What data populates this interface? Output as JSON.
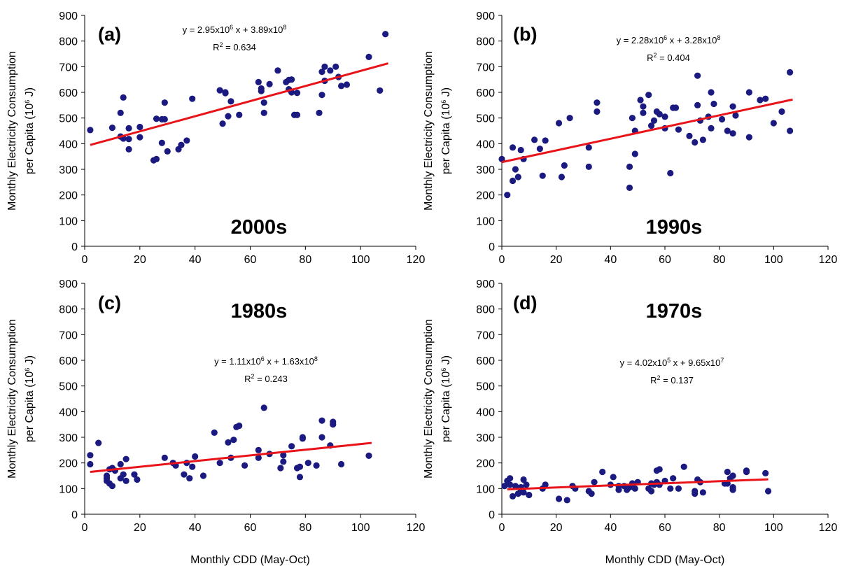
{
  "chart_data": [
    {
      "type": "scatter",
      "panel_label": "(a)",
      "decade": "2000s",
      "equation": [
        "y = 2.95x10",
        "6",
        " x + 3.89x10",
        "8"
      ],
      "r2": [
        "R",
        "2",
        " = 0.634"
      ],
      "ylabel": [
        [
          "Monthly Electricity Consumption"
        ],
        [
          "per Capita (10",
          "6",
          " J)"
        ]
      ],
      "xlim": [
        0,
        120
      ],
      "ylim": [
        0,
        900
      ],
      "xticks": [
        0,
        20,
        40,
        60,
        80,
        100,
        120
      ],
      "yticks": [
        0,
        100,
        200,
        300,
        400,
        500,
        600,
        700,
        800,
        900
      ],
      "color": "#1a1a80",
      "x": [
        2,
        10,
        13,
        13,
        14,
        14,
        16,
        16,
        16,
        20,
        20,
        25,
        26,
        26,
        28,
        28,
        29,
        29,
        30,
        34,
        35,
        37,
        39,
        49,
        50,
        51,
        51,
        52,
        53,
        56,
        63,
        64,
        64,
        65,
        65,
        67,
        70,
        73,
        74,
        74,
        75,
        75,
        76,
        77,
        77,
        85,
        86,
        86,
        87,
        87,
        89,
        91,
        92,
        93,
        95,
        103,
        107,
        109
      ],
      "values": [
        453,
        462,
        520,
        428,
        580,
        420,
        378,
        418,
        460,
        465,
        425,
        335,
        340,
        497,
        495,
        403,
        560,
        495,
        370,
        378,
        395,
        412,
        575,
        608,
        478,
        600,
        597,
        507,
        565,
        512,
        640,
        615,
        605,
        520,
        560,
        632,
        685,
        640,
        612,
        648,
        600,
        650,
        512,
        512,
        598,
        520,
        590,
        680,
        700,
        645,
        685,
        700,
        660,
        625,
        630,
        738,
        607,
        827
      ],
      "trend": {
        "color": "#e8141a",
        "x": [
          2,
          110
        ],
        "y": [
          395,
          713
        ]
      }
    },
    {
      "type": "scatter",
      "panel_label": "(b)",
      "decade": "1990s",
      "equation": [
        "y = 2.28x10",
        "6",
        " x + 3.28x10",
        "8"
      ],
      "r2": [
        "R",
        "2",
        " = 0.404"
      ],
      "ylabel": [
        [
          "Monthly Electricity Consumption"
        ],
        [
          "per Capita (10",
          "6",
          " J)"
        ]
      ],
      "xlim": [
        0,
        120
      ],
      "ylim": [
        0,
        900
      ],
      "xticks": [
        0,
        20,
        40,
        60,
        80,
        100,
        120
      ],
      "yticks": [
        0,
        100,
        200,
        300,
        400,
        500,
        600,
        700,
        800,
        900
      ],
      "color": "#1a1a80",
      "x": [
        0,
        2,
        4,
        4,
        5,
        6,
        7,
        8,
        12,
        14,
        15,
        16,
        21,
        22,
        23,
        25,
        32,
        32,
        35,
        35,
        47,
        47,
        48,
        49,
        49,
        51,
        52,
        52,
        54,
        55,
        56,
        57,
        58,
        60,
        60,
        62,
        63,
        64,
        65,
        69,
        71,
        72,
        72,
        73,
        74,
        76,
        77,
        77,
        78,
        81,
        83,
        85,
        85,
        86,
        91,
        91,
        95,
        97,
        100,
        103,
        106,
        106
      ],
      "values": [
        340,
        200,
        385,
        255,
        300,
        270,
        375,
        340,
        415,
        380,
        275,
        412,
        480,
        270,
        315,
        500,
        385,
        310,
        560,
        525,
        310,
        228,
        500,
        450,
        360,
        570,
        520,
        545,
        590,
        470,
        490,
        525,
        515,
        460,
        505,
        285,
        540,
        540,
        455,
        430,
        405,
        550,
        665,
        490,
        415,
        505,
        600,
        460,
        555,
        495,
        450,
        440,
        545,
        510,
        425,
        600,
        570,
        575,
        480,
        525,
        450,
        678
      ],
      "trend": {
        "color": "#e8141a",
        "x": [
          0,
          107
        ],
        "y": [
          328,
          572
        ]
      }
    },
    {
      "type": "scatter",
      "panel_label": "(c)",
      "decade": "1980s",
      "equation": [
        "y = 1.11x10",
        "6",
        " x + 1.63x10",
        "8"
      ],
      "r2": [
        "R",
        "2",
        " = 0.243"
      ],
      "ylabel": [
        [
          "Monthly Electricity Consumption"
        ],
        [
          "per Capita (10",
          "6",
          " J)"
        ]
      ],
      "xlabel": "Monthly CDD (May-Oct)",
      "xlim": [
        0,
        120
      ],
      "ylim": [
        0,
        900
      ],
      "xticks": [
        0,
        20,
        40,
        60,
        80,
        100,
        120
      ],
      "yticks": [
        0,
        100,
        200,
        300,
        400,
        500,
        600,
        700,
        800,
        900
      ],
      "color": "#1a1a80",
      "x": [
        2,
        2,
        5,
        8,
        8,
        8,
        9,
        9,
        10,
        10,
        11,
        13,
        13,
        14,
        15,
        15,
        18,
        19,
        29,
        32,
        33,
        36,
        37,
        38,
        39,
        40,
        43,
        47,
        49,
        52,
        53,
        54,
        55,
        56,
        58,
        63,
        63,
        65,
        67,
        71,
        72,
        72,
        75,
        77,
        78,
        78,
        79,
        79,
        81,
        84,
        86,
        86,
        89,
        90,
        90,
        93,
        103
      ],
      "values": [
        195,
        230,
        278,
        150,
        140,
        130,
        175,
        120,
        110,
        180,
        170,
        140,
        195,
        155,
        215,
        130,
        155,
        135,
        220,
        200,
        190,
        155,
        200,
        140,
        185,
        225,
        150,
        318,
        200,
        280,
        220,
        290,
        340,
        345,
        190,
        250,
        220,
        415,
        235,
        180,
        230,
        205,
        265,
        180,
        145,
        185,
        295,
        300,
        200,
        190,
        365,
        300,
        268,
        350,
        360,
        195,
        228
      ],
      "trend": {
        "color": "#e8141a",
        "x": [
          2,
          104
        ],
        "y": [
          165,
          278
        ]
      }
    },
    {
      "type": "scatter",
      "panel_label": "(d)",
      "decade": "1970s",
      "equation": [
        "y = 4.02x10",
        "5",
        " x + 9.65x10",
        "7"
      ],
      "r2": [
        "R",
        "2",
        " = 0.137"
      ],
      "ylabel": [
        [
          "Monthly Electricity Consumption"
        ],
        [
          "per Capita (10",
          "6",
          " J)"
        ]
      ],
      "xlabel": "Monthly CDD (May-Oct)",
      "xlim": [
        0,
        120
      ],
      "ylim": [
        0,
        900
      ],
      "xticks": [
        0,
        20,
        40,
        60,
        80,
        100,
        120
      ],
      "yticks": [
        0,
        100,
        200,
        300,
        400,
        500,
        600,
        700,
        800,
        900
      ],
      "color": "#1a1a80",
      "x": [
        1,
        2,
        3,
        3,
        4,
        5,
        6,
        7,
        7,
        8,
        8,
        9,
        10,
        15,
        16,
        21,
        24,
        26,
        27,
        32,
        33,
        34,
        37,
        40,
        41,
        43,
        43,
        45,
        46,
        47,
        48,
        49,
        50,
        54,
        55,
        55,
        56,
        57,
        57,
        58,
        58,
        60,
        62,
        63,
        65,
        67,
        71,
        71,
        72,
        73,
        74,
        82,
        83,
        83,
        84,
        85,
        85,
        85,
        90,
        90,
        97,
        98
      ],
      "values": [
        110,
        130,
        140,
        115,
        70,
        110,
        80,
        90,
        105,
        85,
        135,
        115,
        75,
        100,
        115,
        60,
        55,
        110,
        100,
        90,
        80,
        125,
        165,
        115,
        145,
        95,
        110,
        110,
        95,
        105,
        120,
        100,
        125,
        100,
        120,
        90,
        115,
        170,
        125,
        115,
        175,
        130,
        100,
        140,
        100,
        185,
        90,
        80,
        135,
        125,
        85,
        120,
        120,
        165,
        140,
        150,
        105,
        95,
        165,
        170,
        160,
        90
      ],
      "trend": {
        "color": "#e8141a",
        "x": [
          2,
          98
        ],
        "y": [
          97,
          136
        ]
      }
    }
  ]
}
